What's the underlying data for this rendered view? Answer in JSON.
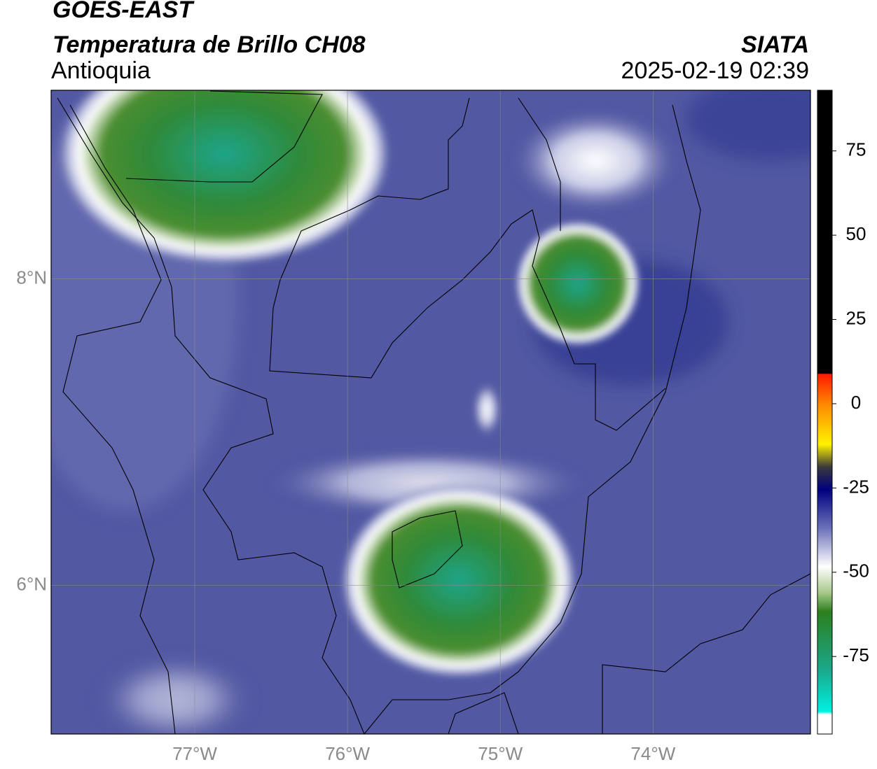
{
  "chart_data": {
    "type": "map",
    "title": "GOES-EAST",
    "subtitle": "Temperatura de Brillo CH08",
    "region": "Antioquia",
    "source": "SIATA",
    "datetime": "2025-02-19 02:39",
    "xlim": [
      -77.94,
      -72.97
    ],
    "ylim": [
      5.03,
      9.23
    ],
    "xticks": [
      {
        "value": -77,
        "label": "77°W"
      },
      {
        "value": -76,
        "label": "76°W"
      },
      {
        "value": -75,
        "label": "75°W"
      },
      {
        "value": -74,
        "label": "74°W"
      }
    ],
    "yticks": [
      {
        "value": 8,
        "label": "8°N"
      },
      {
        "value": 6,
        "label": "6°N"
      }
    ],
    "grid": true,
    "colorbar": {
      "clim": [
        -98,
        93
      ],
      "ticks": [
        75,
        50,
        25,
        0,
        -25,
        -50,
        -75
      ]
    }
  }
}
